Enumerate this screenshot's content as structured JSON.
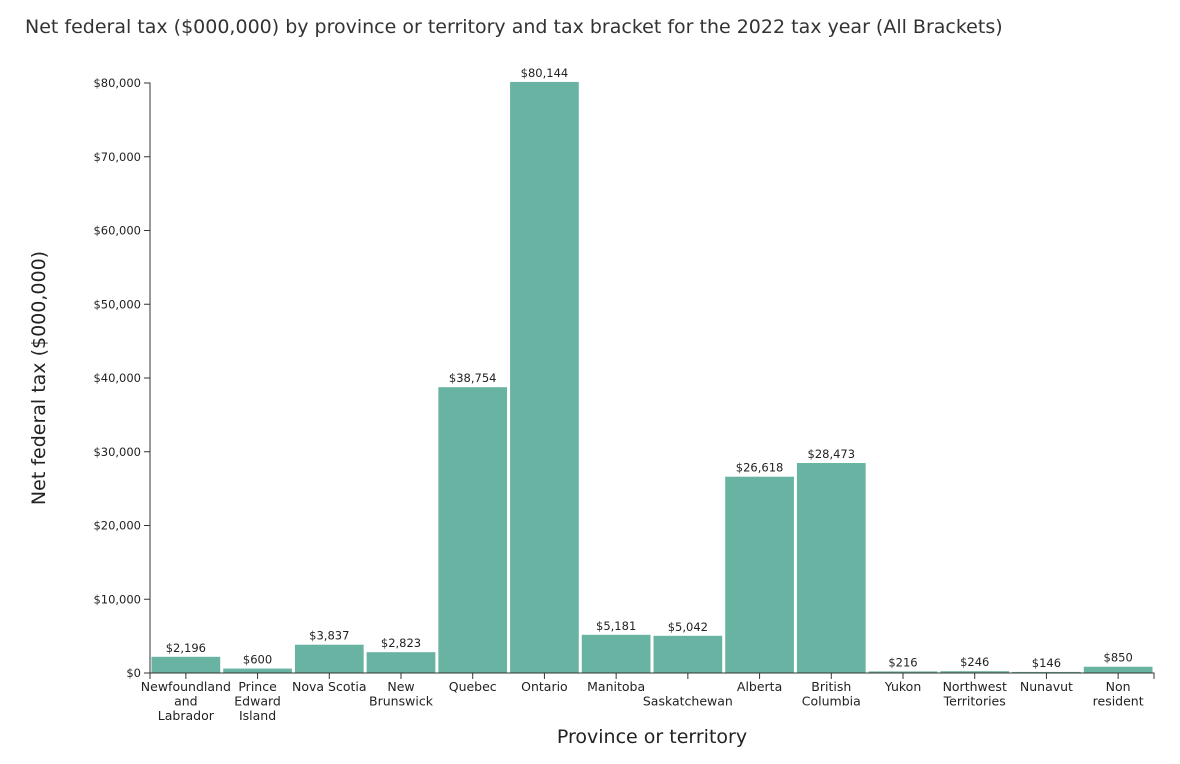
{
  "chart_data": {
    "type": "bar",
    "title": "Net federal tax ($000,000) by province or territory and tax bracket for the 2022 tax year (All Brackets)",
    "xlabel": "Province or territory",
    "ylabel": "Net federal tax ($000,000)",
    "ylim": [
      0,
      80000
    ],
    "yticks": [
      {
        "value": 0,
        "label": "$0"
      },
      {
        "value": 10000,
        "label": "$10,000"
      },
      {
        "value": 20000,
        "label": "$20,000"
      },
      {
        "value": 30000,
        "label": "$30,000"
      },
      {
        "value": 40000,
        "label": "$40,000"
      },
      {
        "value": 50000,
        "label": "$50,000"
      },
      {
        "value": 60000,
        "label": "$60,000"
      },
      {
        "value": 70000,
        "label": "$70,000"
      },
      {
        "value": 80000,
        "label": "$80,000"
      }
    ],
    "categories": [
      "Newfoundland and Labrador",
      "Prince Edward Island",
      "Nova Scotia",
      "New Brunswick",
      "Quebec",
      "Ontario",
      "Manitoba",
      "Saskatchewan",
      "Alberta",
      "British Columbia",
      "Yukon",
      "Northwest Territories",
      "Nunavut",
      "Non resident"
    ],
    "category_label_lines": [
      [
        "Newfoundland",
        "and",
        "Labrador"
      ],
      [
        "Prince",
        "Edward",
        "Island"
      ],
      [
        "Nova Scotia"
      ],
      [
        "New",
        "Brunswick"
      ],
      [
        "Quebec"
      ],
      [
        "Ontario"
      ],
      [
        "Manitoba"
      ],
      [
        "",
        "Saskatchewan"
      ],
      [
        "Alberta"
      ],
      [
        "British",
        "Columbia"
      ],
      [
        "Yukon"
      ],
      [
        "Northwest",
        "Territories"
      ],
      [
        "Nunavut"
      ],
      [
        "Non",
        "resident"
      ]
    ],
    "values": [
      2196,
      600,
      3837,
      2823,
      38754,
      80144,
      5181,
      5042,
      26618,
      28473,
      216,
      246,
      146,
      850
    ],
    "value_labels": [
      "$2,196",
      "$600",
      "$3,837",
      "$2,823",
      "$38,754",
      "$80,144",
      "$5,181",
      "$5,042",
      "$26,618",
      "$28,473",
      "$216",
      "$246",
      "$146",
      "$850"
    ],
    "bar_color": "#69b3a2",
    "grid": false,
    "legend": "none"
  }
}
